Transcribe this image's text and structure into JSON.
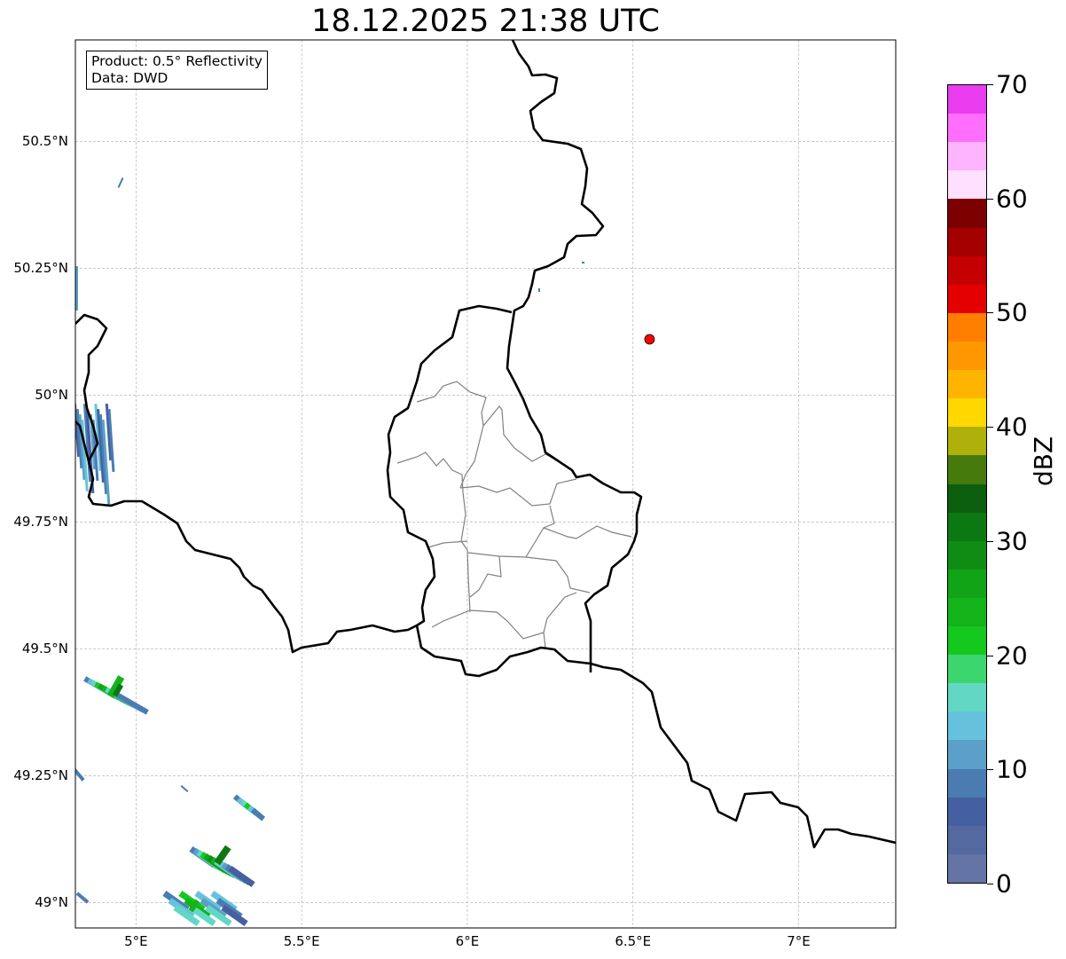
{
  "title": "18.12.2025 21:38 UTC",
  "info_box": {
    "line1": "Product: 0.5° Reflectivity",
    "line2": "Data: DWD"
  },
  "axes": {
    "lon_ticks": [
      {
        "value": 5.0,
        "label": "5°E"
      },
      {
        "value": 5.5,
        "label": "5.5°E"
      },
      {
        "value": 6.0,
        "label": "6°E"
      },
      {
        "value": 6.5,
        "label": "6.5°E"
      },
      {
        "value": 7.0,
        "label": "7°E"
      }
    ],
    "lat_ticks": [
      {
        "value": 50.5,
        "label": "50.5°N"
      },
      {
        "value": 50.25,
        "label": "50.25°N"
      },
      {
        "value": 50.0,
        "label": "50°N"
      },
      {
        "value": 49.75,
        "label": "49.75°N"
      },
      {
        "value": 49.5,
        "label": "49.5°N"
      },
      {
        "value": 49.25,
        "label": "49.25°N"
      },
      {
        "value": 49.0,
        "label": "49°N"
      }
    ],
    "lon_range": [
      4.817,
      7.293
    ],
    "lat_range": [
      48.95,
      50.7
    ]
  },
  "marker": {
    "lon": 6.55,
    "lat": 50.11,
    "color": "#ff0000"
  },
  "colorbar": {
    "label": "dBZ",
    "min": 0,
    "max": 70,
    "step": 2.5,
    "ticks": [
      {
        "value": 0,
        "label": "0"
      },
      {
        "value": 10,
        "label": "10"
      },
      {
        "value": 20,
        "label": "20"
      },
      {
        "value": 30,
        "label": "30"
      },
      {
        "value": 40,
        "label": "40"
      },
      {
        "value": 50,
        "label": "50"
      },
      {
        "value": 60,
        "label": "60"
      },
      {
        "value": 70,
        "label": "70"
      }
    ],
    "colors": [
      "#6474a4",
      "#5469a0",
      "#4460a0",
      "#4a7cb2",
      "#5aa0c8",
      "#66c2dc",
      "#62d8c4",
      "#3dd66e",
      "#14c81e",
      "#12b41a",
      "#10a416",
      "#0e8c14",
      "#0c7812",
      "#0a5e0e",
      "#467a0c",
      "#b0b00a",
      "#ffd800",
      "#ffb400",
      "#ff9800",
      "#ff7e00",
      "#e40000",
      "#c40000",
      "#a40000",
      "#7c0000",
      "#ffe0ff",
      "#ffb4ff",
      "#ff6eff",
      "#e83cee"
    ]
  }
}
